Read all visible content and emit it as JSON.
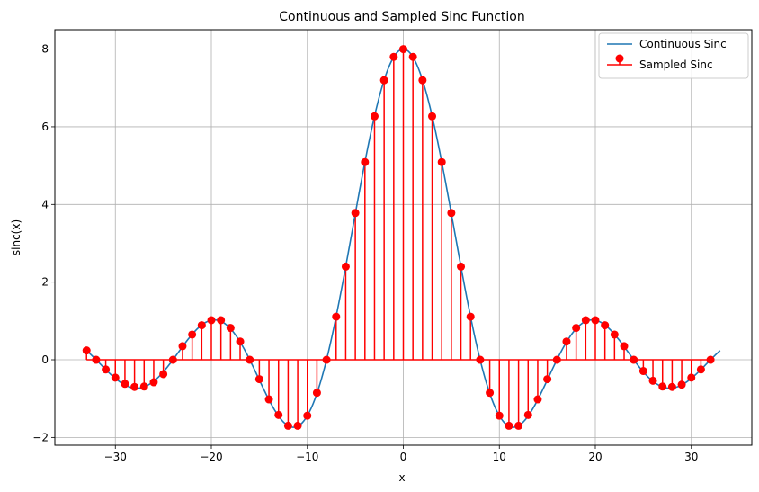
{
  "chart_data": {
    "type": "stem",
    "title": "Continuous and Sampled Sinc Function",
    "xlabel": "x",
    "ylabel": "sinc(x)",
    "xlim": [
      -36.3,
      36.3
    ],
    "ylim": [
      -2.2,
      8.5
    ],
    "xticks": [
      -30,
      -20,
      -10,
      0,
      10,
      20,
      30
    ],
    "yticks": [
      -2,
      0,
      2,
      4,
      6,
      8
    ],
    "xtick_labels": [
      "−30",
      "−20",
      "−10",
      "0",
      "10",
      "20",
      "30"
    ],
    "ytick_labels": [
      "−2",
      "0",
      "2",
      "4",
      "6",
      "8"
    ],
    "grid": true,
    "legend_position": "top-right",
    "series": [
      {
        "name": "Continuous Sinc",
        "kind": "line",
        "color": "#1f77b4",
        "x_range": [
          -33,
          33
        ],
        "formula": "8*sin(pi*x/8)/(pi*x/8)"
      },
      {
        "name": "Sampled Sinc",
        "kind": "stem",
        "color": "#ff0000",
        "x": [
          -33,
          -32,
          -31,
          -30,
          -29,
          -28,
          -27,
          -26,
          -25,
          -24,
          -23,
          -22,
          -21,
          -20,
          -19,
          -18,
          -17,
          -16,
          -15,
          -14,
          -13,
          -12,
          -11,
          -10,
          -9,
          -8,
          -7,
          -6,
          -5,
          -4,
          -3,
          -2,
          -1,
          0,
          1,
          2,
          3,
          4,
          5,
          6,
          7,
          8,
          9,
          10,
          11,
          12,
          13,
          14,
          15,
          16,
          17,
          18,
          19,
          20,
          21,
          22,
          23,
          24,
          25,
          26,
          27,
          28,
          29,
          30,
          31,
          32
        ],
        "y": [
          0.24,
          0.0,
          -0.25,
          -0.46,
          -0.62,
          -0.7,
          -0.69,
          -0.58,
          -0.37,
          0.0,
          0.35,
          0.65,
          0.89,
          1.02,
          1.02,
          0.82,
          0.47,
          0.0,
          -0.5,
          -1.02,
          -1.42,
          -1.7,
          -1.7,
          -1.44,
          -0.85,
          0.0,
          1.11,
          2.4,
          3.78,
          5.09,
          6.27,
          7.2,
          7.8,
          8.0,
          7.8,
          7.2,
          6.27,
          5.09,
          3.78,
          2.4,
          1.11,
          0.0,
          -0.85,
          -1.44,
          -1.7,
          -1.7,
          -1.42,
          -1.02,
          -0.5,
          0.0,
          0.47,
          0.82,
          1.02,
          1.02,
          0.89,
          0.65,
          0.35,
          0.0,
          -0.29,
          -0.54,
          -0.69,
          -0.7,
          -0.64,
          -0.46,
          -0.25,
          0.0
        ]
      }
    ]
  }
}
